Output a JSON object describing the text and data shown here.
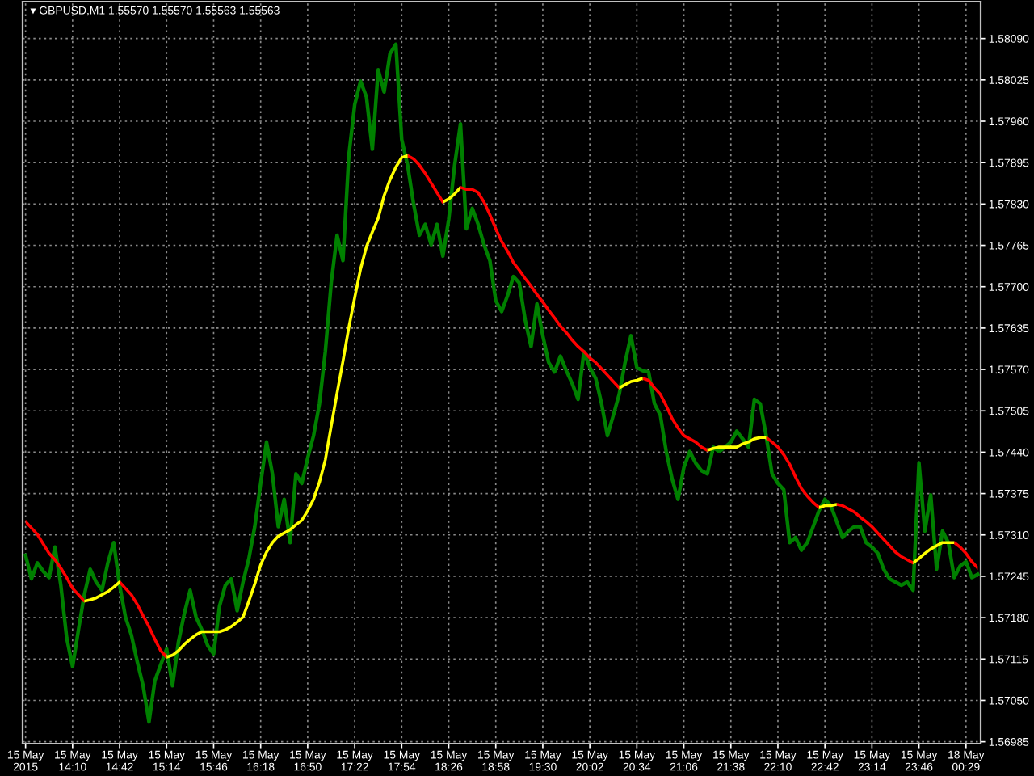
{
  "chart_data": {
    "type": "line",
    "title": "▾ GBPUSD,M1 1.55570 1.55570 1.55563 1.55563",
    "categories": [
      "15 May 2015",
      null,
      null,
      null,
      null,
      null,
      null,
      null,
      "15 May 14:10",
      null,
      null,
      null,
      null,
      null,
      null,
      null,
      "15 May 14:42",
      null,
      null,
      null,
      null,
      null,
      null,
      null,
      "15 May 15:14",
      null,
      null,
      null,
      null,
      null,
      null,
      null,
      "15 May 15:46",
      null,
      null,
      null,
      null,
      null,
      null,
      null,
      "15 May 16:18",
      null,
      null,
      null,
      null,
      null,
      null,
      null,
      "15 May 16:50",
      null,
      null,
      null,
      null,
      null,
      null,
      null,
      "15 May 17:22",
      null,
      null,
      null,
      null,
      null,
      null,
      null,
      "15 May 17:54",
      null,
      null,
      null,
      null,
      null,
      null,
      null,
      "15 May 18:26",
      null,
      null,
      null,
      null,
      null,
      null,
      null,
      "15 May 18:58",
      null,
      null,
      null,
      null,
      null,
      null,
      null,
      "15 May 19:30",
      null,
      null,
      null,
      null,
      null,
      null,
      null,
      "15 May 20:02",
      null,
      null,
      null,
      null,
      null,
      null,
      null,
      "15 May 20:34",
      null,
      null,
      null,
      null,
      null,
      null,
      null,
      "15 May 21:06",
      null,
      null,
      null,
      null,
      null,
      null,
      null,
      "15 May 21:38",
      null,
      null,
      null,
      null,
      null,
      null,
      null,
      "15 May 22:10",
      null,
      null,
      null,
      null,
      null,
      null,
      null,
      "15 May 22:42",
      null,
      null,
      null,
      null,
      null,
      null,
      null,
      "15 May 23:14",
      null,
      null,
      null,
      null,
      null,
      null,
      null,
      "15 May 23:46",
      null,
      null,
      null,
      null,
      null,
      null,
      null,
      "18 May 00:29",
      null,
      null
    ],
    "series": [
      {
        "color": "#008000",
        "values": [
          1.57278,
          1.57241,
          1.57266,
          1.57253,
          1.57243,
          1.57291,
          1.57231,
          1.57148,
          1.57103,
          1.57161,
          1.57216,
          1.57256,
          1.57236,
          1.57223,
          1.57266,
          1.57298,
          1.57231,
          1.57181,
          1.57153,
          1.57111,
          1.57073,
          1.57016,
          1.57081,
          1.57106,
          1.57131,
          1.57073,
          1.57141,
          1.57186,
          1.57223,
          1.57181,
          1.57161,
          1.57136,
          1.57123,
          1.57198,
          1.57231,
          1.57241,
          1.57191,
          1.57236,
          1.57273,
          1.57323,
          1.57391,
          1.57456,
          1.57406,
          1.57323,
          1.57366,
          1.57298,
          1.57406,
          1.57391,
          1.57431,
          1.57466,
          1.57516,
          1.57598,
          1.57706,
          1.57781,
          1.57741,
          1.57906,
          1.57986,
          1.58023,
          1.57998,
          1.57916,
          1.58041,
          1.58006,
          1.58066,
          1.58081,
          1.57931,
          1.57891,
          1.57831,
          1.57781,
          1.57798,
          1.57766,
          1.57798,
          1.57748,
          1.57806,
          1.57891,
          1.57956,
          1.57791,
          1.57823,
          1.57798,
          1.57766,
          1.57741,
          1.57678,
          1.57661,
          1.57686,
          1.57716,
          1.57706,
          1.57648,
          1.57606,
          1.57673,
          1.57623,
          1.57581,
          1.57566,
          1.57591,
          1.57568,
          1.57548,
          1.57523,
          1.57598,
          1.57573,
          1.57556,
          1.57516,
          1.57466,
          1.57498,
          1.57531,
          1.57581,
          1.57623,
          1.57573,
          1.57568,
          1.57566,
          1.57516,
          1.57498,
          1.57441,
          1.57398,
          1.57366,
          1.57416,
          1.57441,
          1.57423,
          1.57411,
          1.57406,
          1.57448,
          1.57441,
          1.57448,
          1.57456,
          1.57473,
          1.57461,
          1.57448,
          1.57523,
          1.57516,
          1.57466,
          1.57406,
          1.57391,
          1.57381,
          1.57298,
          1.57306,
          1.57286,
          1.57298,
          1.57323,
          1.57348,
          1.57366,
          1.57356,
          1.57331,
          1.57306,
          1.57316,
          1.57323,
          1.57323,
          1.57298,
          1.57291,
          1.57281,
          1.57256,
          1.57241,
          1.57236,
          1.57231,
          1.57236,
          1.57223,
          1.57423,
          1.57316,
          1.57373,
          1.57256,
          1.57316,
          1.57298,
          1.57243,
          1.57261,
          1.57268,
          1.57243,
          1.57248
        ]
      },
      {
        "color": "#ff0000",
        "values": [
          1.57331,
          1.57321,
          1.57311,
          1.57296,
          1.57281,
          1.57271,
          1.57258,
          1.57243,
          1.57226,
          1.57216,
          1.57206,
          null,
          null,
          null,
          null,
          null,
          1.57236,
          1.57226,
          1.57216,
          1.57201,
          1.57183,
          1.57166,
          1.57146,
          1.57128,
          1.57118,
          null,
          null,
          null,
          null,
          null,
          null,
          null,
          null,
          null,
          null,
          null,
          null,
          null,
          null,
          null,
          null,
          null,
          null,
          null,
          null,
          null,
          null,
          null,
          null,
          null,
          null,
          null,
          null,
          null,
          null,
          null,
          null,
          null,
          null,
          null,
          null,
          null,
          null,
          null,
          null,
          1.57906,
          1.57901,
          1.57891,
          1.57878,
          1.57863,
          1.57848,
          1.57833,
          null,
          null,
          1.57856,
          1.57853,
          1.57853,
          1.57848,
          1.57833,
          1.57813,
          1.57791,
          1.57771,
          1.57756,
          1.57738,
          1.57726,
          1.57713,
          1.57701,
          1.57688,
          1.57676,
          1.57663,
          1.57651,
          1.57638,
          1.57628,
          1.57616,
          1.57606,
          1.57598,
          1.57588,
          1.57581,
          1.57571,
          1.57561,
          1.57551,
          1.57541,
          null,
          null,
          null,
          1.57556,
          1.57553,
          1.57541,
          1.57531,
          1.57513,
          1.57493,
          1.57478,
          1.57466,
          1.57461,
          1.57456,
          1.57448,
          1.57443,
          null,
          null,
          null,
          null,
          null,
          null,
          null,
          null,
          null,
          1.57463,
          1.57456,
          1.57448,
          1.57436,
          1.57421,
          1.57401,
          1.57383,
          1.57371,
          1.57361,
          1.57353,
          null,
          null,
          1.57358,
          1.57356,
          1.57351,
          1.57346,
          1.57338,
          1.57331,
          1.57323,
          1.57313,
          1.57303,
          1.57293,
          1.57283,
          1.57276,
          1.57271,
          1.57266,
          null,
          null,
          null,
          null,
          null,
          null,
          1.57298,
          1.57291,
          1.57281,
          1.57268,
          1.57258
        ]
      },
      {
        "color": "#ffff00",
        "values": [
          null,
          null,
          null,
          null,
          null,
          null,
          null,
          null,
          null,
          null,
          1.57206,
          1.57208,
          1.57211,
          1.57216,
          1.57221,
          1.57228,
          1.57236,
          null,
          null,
          null,
          null,
          null,
          null,
          null,
          1.57118,
          1.57121,
          1.57128,
          1.57138,
          1.57146,
          1.57153,
          1.57158,
          1.57158,
          1.57158,
          1.57158,
          1.57161,
          1.57166,
          1.57173,
          1.57181,
          1.57206,
          1.57233,
          1.57263,
          1.57283,
          1.57298,
          1.57308,
          1.57313,
          1.57318,
          1.57326,
          1.57333,
          1.57348,
          1.57366,
          1.57393,
          1.57428,
          1.57481,
          1.57533,
          1.57583,
          1.57636,
          1.57683,
          1.57728,
          1.57763,
          1.57786,
          1.57808,
          1.57843,
          1.57868,
          1.57888,
          1.57903,
          1.57906,
          null,
          null,
          null,
          null,
          null,
          1.57833,
          1.57838,
          1.57846,
          1.57856,
          null,
          null,
          null,
          null,
          null,
          null,
          null,
          null,
          null,
          null,
          null,
          null,
          null,
          null,
          null,
          null,
          null,
          null,
          null,
          null,
          null,
          null,
          null,
          null,
          null,
          null,
          1.57541,
          1.57546,
          1.57551,
          1.57553,
          1.57556,
          null,
          null,
          null,
          null,
          null,
          null,
          null,
          null,
          null,
          null,
          1.57443,
          1.57446,
          1.57448,
          1.57448,
          1.57448,
          1.57448,
          1.57453,
          1.57456,
          1.57461,
          1.57463,
          1.57463,
          null,
          null,
          null,
          null,
          null,
          null,
          null,
          null,
          1.57353,
          1.57356,
          1.57356,
          1.57358,
          null,
          null,
          null,
          null,
          null,
          null,
          null,
          null,
          null,
          null,
          null,
          null,
          1.57266,
          1.57273,
          1.57281,
          1.57288,
          1.57293,
          1.57298,
          1.57298,
          1.57298,
          null,
          null,
          null,
          null
        ]
      }
    ],
    "ylim": [
      1.56982,
      1.58148
    ],
    "yticks": [
      1.56985,
      {
        "value": 1.5705,
        "label": "1.57050"
      },
      1.57115,
      {
        "value": 1.5718,
        "label": "1.57180"
      },
      1.57245,
      {
        "value": 1.5731,
        "label": "1.57310"
      },
      1.57375,
      {
        "value": 1.5744,
        "label": "1.57440"
      },
      1.57505,
      {
        "value": 1.5757,
        "label": "1.57570"
      },
      1.57635,
      {
        "value": 1.577,
        "label": "1.57700"
      },
      1.57765,
      {
        "value": 1.5783,
        "label": "1.57830"
      },
      1.57895,
      {
        "value": 1.5796,
        "label": "1.57960"
      },
      1.58025,
      {
        "value": 1.5809,
        "label": "1.58090"
      }
    ],
    "grid": true
  }
}
